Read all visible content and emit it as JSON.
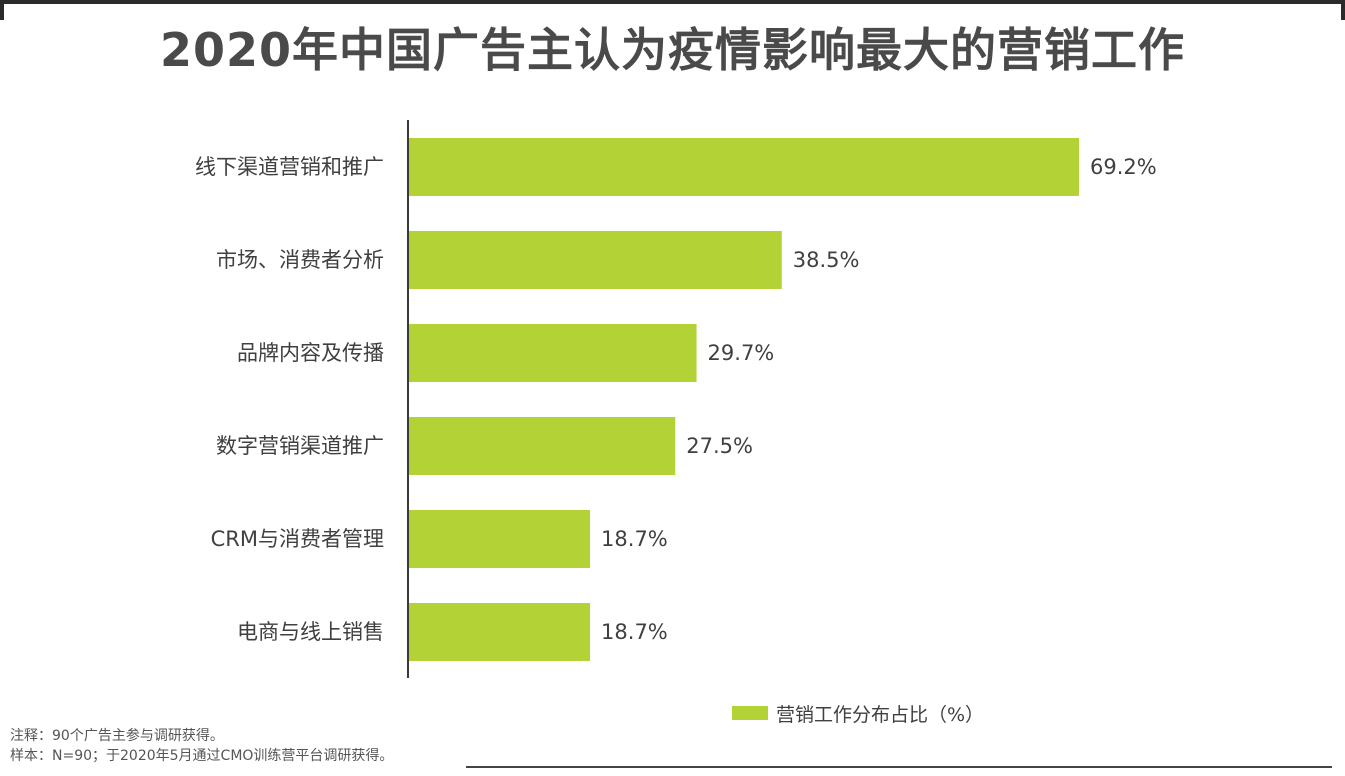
{
  "title": "2020年中国广告主认为疫情影响最大的营销工作",
  "chart_data": {
    "type": "bar",
    "orientation": "horizontal",
    "categories": [
      "线下渠道营销和推广",
      "市场、消费者分析",
      "品牌内容及传播",
      "数字营销渠道推广",
      "CRM与消费者管理",
      "电商与线上销售"
    ],
    "series": [
      {
        "name": "营销工作分布占比（%）",
        "values": [
          69.2,
          38.5,
          29.7,
          27.5,
          18.7,
          18.7
        ],
        "labels": [
          "69.2%",
          "38.5%",
          "29.7%",
          "27.5%",
          "18.7%",
          "18.7%"
        ],
        "color": "#b2d235"
      }
    ],
    "xlim": [
      0,
      80
    ],
    "grid": false,
    "legend_position": "bottom-right"
  },
  "notes": {
    "line1": "注释：90个广告主参与调研获得。",
    "line2": "样本：N=90；于2020年5月通过CMO训练营平台调研获得。"
  }
}
